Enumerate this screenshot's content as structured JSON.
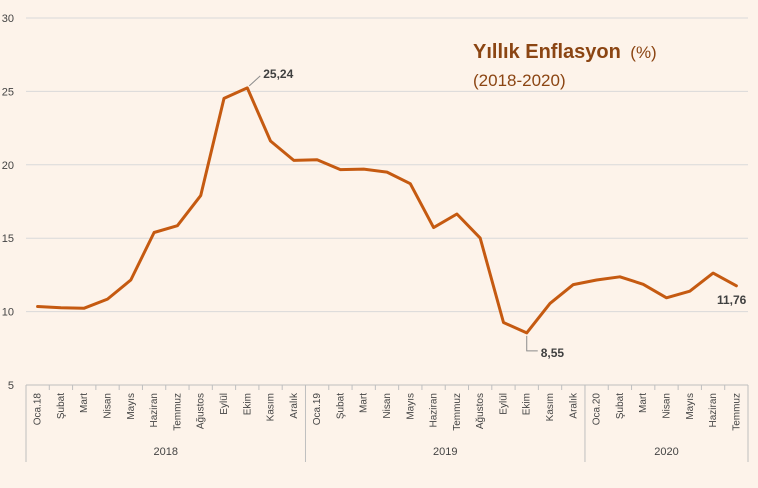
{
  "chart_data": {
    "type": "line",
    "title": "Yıllık Enflasyon",
    "title_unit": "(%)",
    "subtitle": "(2018-2020)",
    "ylim": [
      5,
      30
    ],
    "yticks": [
      5,
      10,
      15,
      20,
      25,
      30
    ],
    "grid": true,
    "legend": "none",
    "line_color": "#c55a11",
    "categories": [
      "Oca.18",
      "Şubat",
      "Mart",
      "Nisan",
      "Mayıs",
      "Haziran",
      "Temmuz",
      "Ağustos",
      "Eylül",
      "Ekim",
      "Kasım",
      "Aralık",
      "Oca.19",
      "Şubat",
      "Mart",
      "Nisan",
      "Mayıs",
      "Haziran",
      "Temmuz",
      "Ağustos",
      "Eylül",
      "Ekim",
      "Kasım",
      "Aralık",
      "Oca.20",
      "Şubat",
      "Mart",
      "Nisan",
      "Mayıs",
      "Haziran",
      "Temmuz"
    ],
    "years": [
      {
        "label": "2018",
        "count": 12
      },
      {
        "label": "2019",
        "count": 12
      },
      {
        "label": "2020",
        "count": 7
      }
    ],
    "values": [
      10.35,
      10.26,
      10.23,
      10.85,
      12.15,
      15.39,
      15.85,
      17.9,
      24.52,
      25.24,
      21.62,
      20.3,
      20.35,
      19.67,
      19.71,
      19.5,
      18.71,
      15.72,
      16.65,
      15.01,
      9.26,
      8.55,
      10.56,
      11.84,
      12.15,
      12.37,
      11.86,
      10.94,
      11.39,
      12.62,
      11.76
    ],
    "annotations": [
      {
        "index": 9,
        "label": "25,24"
      },
      {
        "index": 21,
        "label": "8,55"
      },
      {
        "index": 30,
        "label": "11,76"
      }
    ]
  }
}
